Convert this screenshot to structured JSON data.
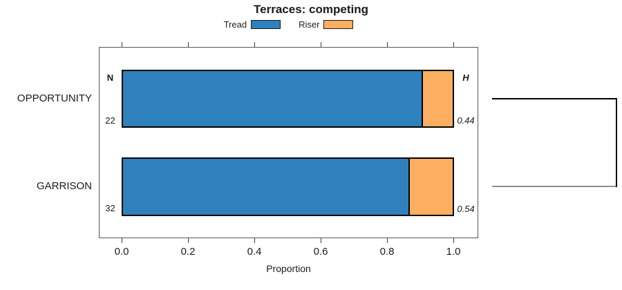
{
  "colors": {
    "tread": "#2E81BC",
    "riser": "#FCAE61",
    "dendro_line": "#000000",
    "dendro_line_gray": "#8E8E8E"
  },
  "chart_data": {
    "type": "bar",
    "orientation": "horizontal",
    "stacked": true,
    "title": "Terraces: competing",
    "xlabel": "Proportion",
    "xlim": [
      0,
      1
    ],
    "x_ticks": [
      0.0,
      0.2,
      0.4,
      0.6,
      0.8,
      1.0
    ],
    "x_tick_labels": [
      "0.0",
      "0.2",
      "0.4",
      "0.6",
      "0.8",
      "1.0"
    ],
    "grid": false,
    "categories": [
      "OPPORTUNITY",
      "GARRISON"
    ],
    "series": [
      {
        "name": "Tread",
        "color": "#2E81BC",
        "values": [
          0.91,
          0.87
        ]
      },
      {
        "name": "Riser",
        "color": "#FCAE61",
        "values": [
          0.09,
          0.13
        ]
      }
    ],
    "annotations": {
      "n_header": "N",
      "h_header": "H",
      "n_values": [
        22,
        32
      ],
      "h_values": [
        "0.44",
        "0.54"
      ]
    },
    "legend": {
      "position": "top",
      "entries": [
        "Tread",
        "Riser"
      ]
    },
    "dendrogram": {
      "description": "bracket in right margin joining OPPORTUNITY and GARRISON rows",
      "joins": [
        [
          "OPPORTUNITY",
          "GARRISON"
        ]
      ]
    }
  }
}
